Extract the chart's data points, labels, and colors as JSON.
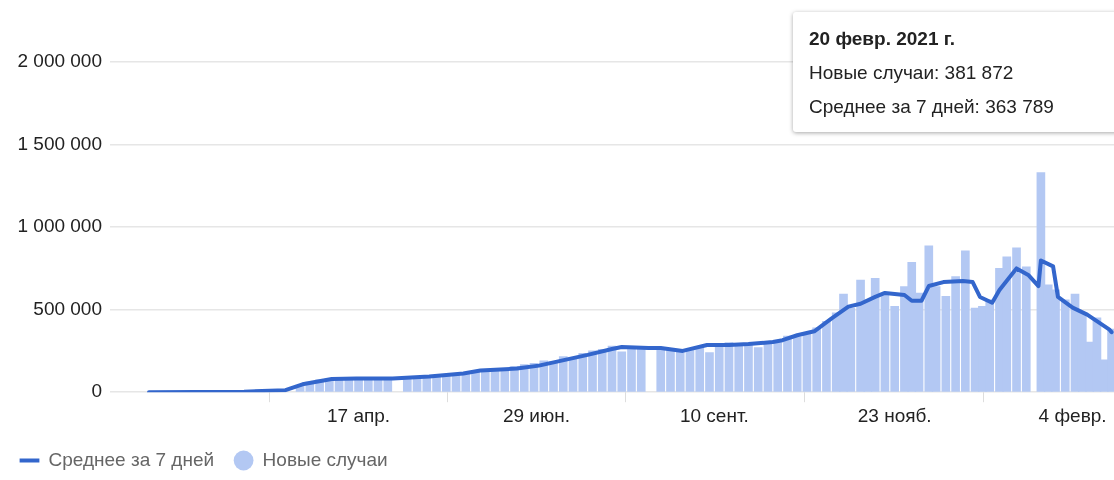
{
  "chart_data": {
    "type": "bar",
    "x": [
      "2020-03-24",
      "2020-03-28",
      "2020-04-01",
      "2020-04-05",
      "2020-04-09",
      "2020-04-13",
      "2020-04-17",
      "2020-04-21",
      "2020-04-25",
      "2020-04-29",
      "2020-05-07",
      "2020-05-11",
      "2020-05-15",
      "2020-05-19",
      "2020-05-23",
      "2020-05-27",
      "2020-05-31",
      "2020-06-04",
      "2020-06-08",
      "2020-06-12",
      "2020-06-16",
      "2020-06-20",
      "2020-06-24",
      "2020-06-28",
      "2020-07-02",
      "2020-07-06",
      "2020-07-10",
      "2020-07-14",
      "2020-07-18",
      "2020-07-22",
      "2020-07-26",
      "2020-07-30",
      "2020-08-03",
      "2020-08-07",
      "2020-08-11",
      "2020-08-19",
      "2020-08-23",
      "2020-08-27",
      "2020-08-31",
      "2020-09-04",
      "2020-09-08",
      "2020-09-12",
      "2020-09-16",
      "2020-09-20",
      "2020-09-24",
      "2020-09-28",
      "2020-10-02",
      "2020-10-06",
      "2020-10-10",
      "2020-10-14",
      "2020-10-18",
      "2020-10-22",
      "2020-10-26",
      "2020-10-30",
      "2020-11-02",
      "2020-11-05",
      "2020-11-09",
      "2020-11-12",
      "2020-11-15",
      "2020-11-19",
      "2020-11-23",
      "2020-11-27",
      "2020-11-30",
      "2020-12-03",
      "2020-12-07",
      "2020-12-10",
      "2020-12-14",
      "2020-12-18",
      "2020-12-22",
      "2020-12-26",
      "2020-12-29",
      "2021-01-01",
      "2021-01-05",
      "2021-01-08",
      "2021-01-12",
      "2021-01-16",
      "2021-01-22",
      "2021-01-25",
      "2021-01-28",
      "2021-02-01",
      "2021-02-05",
      "2021-02-08",
      "2021-02-11",
      "2021-02-14",
      "2021-02-17",
      "2021-02-20"
    ],
    "series": [
      {
        "name": "Новые случаи",
        "color": "#b3c8f3",
        "values": [
          42000,
          62000,
          75000,
          80000,
          85000,
          78000,
          82000,
          80000,
          88000,
          84000,
          90000,
          86000,
          98000,
          102000,
          108000,
          100000,
          118000,
          128000,
          120000,
          140000,
          145000,
          155000,
          168000,
          175000,
          190000,
          185000,
          215000,
          210000,
          235000,
          250000,
          260000,
          280000,
          245000,
          275000,
          262000,
          255000,
          265000,
          248000,
          260000,
          270000,
          240000,
          285000,
          300000,
          280000,
          285000,
          270000,
          305000,
          300000,
          340000,
          335000,
          355000,
          390000,
          430000,
          480000,
          595000,
          510000,
          679000,
          560000,
          690000,
          600000,
          520000,
          640000,
          786000,
          600000,
          887000,
          640000,
          580000,
          700000,
          857000,
          510000,
          520000,
          560000,
          750000,
          820000,
          875000,
          760000,
          1330000,
          650000,
          620000,
          560000,
          595000,
          480000,
          303000,
          450000,
          196000,
          381872
        ]
      },
      {
        "name": "Среднее за 7 дней",
        "color": "#3366cc",
        "type": "line",
        "x": [
          "2020-01-22",
          "2020-03-01",
          "2020-03-18",
          "2020-03-25",
          "2020-04-06",
          "2020-04-16",
          "2020-05-01",
          "2020-05-16",
          "2020-05-30",
          "2020-06-06",
          "2020-06-21",
          "2020-06-30",
          "2020-07-20",
          "2020-07-30",
          "2020-08-03",
          "2020-08-14",
          "2020-08-19",
          "2020-08-28",
          "2020-09-07",
          "2020-09-16",
          "2020-09-24",
          "2020-10-04",
          "2020-10-08",
          "2020-10-14",
          "2020-10-21",
          "2020-10-28",
          "2020-11-04",
          "2020-11-09",
          "2020-11-15",
          "2020-11-19",
          "2020-11-27",
          "2020-11-30",
          "2020-12-04",
          "2020-12-07",
          "2020-12-13",
          "2020-12-21",
          "2020-12-25",
          "2020-12-28",
          "2021-01-02",
          "2021-01-05",
          "2021-01-12",
          "2021-01-17",
          "2021-01-21",
          "2021-01-22",
          "2021-01-27",
          "2021-01-29",
          "2021-02-04",
          "2021-02-10",
          "2021-02-19",
          "2021-02-20"
        ],
        "values": [
          0,
          3000,
          12000,
          48000,
          80000,
          83000,
          83000,
          95000,
          113000,
          131000,
          143000,
          161000,
          226000,
          262000,
          274000,
          268000,
          268000,
          250000,
          286000,
          286000,
          292000,
          304000,
          315000,
          345000,
          369000,
          446000,
          518000,
          536000,
          577000,
          601000,
          589000,
          554000,
          554000,
          643000,
          667000,
          673000,
          667000,
          577000,
          542000,
          619000,
          750000,
          708000,
          643000,
          798000,
          762000,
          577000,
          512000,
          470000,
          381000,
          363789
        ]
      }
    ],
    "xlim": [
      "2020-01-06",
      "2021-02-21"
    ],
    "xticks": [
      {
        "value": "2020-04-17",
        "label": "17 апр."
      },
      {
        "value": "2020-06-29",
        "label": "29 июн."
      },
      {
        "value": "2020-09-10",
        "label": "10 сент."
      },
      {
        "value": "2020-11-23",
        "label": "23 нояб."
      },
      {
        "value": "2021-02-04",
        "label": "4 февр."
      }
    ],
    "ylim": [
      0,
      2000000
    ],
    "yticks": [
      0,
      {
        "value": 500000,
        "label": "500 000"
      },
      {
        "value": 1000000,
        "label": "1 000 000"
      },
      {
        "value": 1500000,
        "label": "1 500 000"
      },
      {
        "value": 2000000,
        "label": "2 000 000"
      }
    ],
    "grid": "y",
    "legend": "bottom left",
    "marker": "none",
    "line_style": "solid",
    "annotations": [
      "20 февр. 2021 г.",
      "Новые случаи: 381 872",
      "Среднее за 7 дней: 363 789"
    ]
  }
}
